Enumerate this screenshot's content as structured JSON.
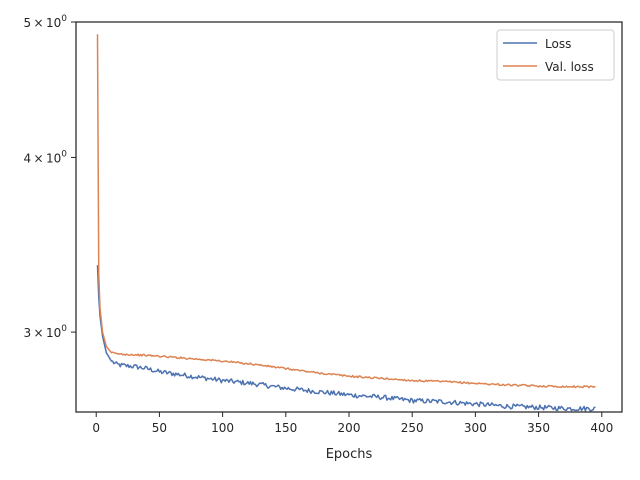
{
  "chart_data": {
    "type": "line",
    "title": "",
    "xlabel": "Epochs",
    "ylabel": "",
    "xlim": [
      -16,
      416
    ],
    "ylim": [
      2.63,
      5.0
    ],
    "yscale": "log",
    "grid": false,
    "legend_position": "top-right",
    "x_ticks": [
      0,
      50,
      100,
      150,
      200,
      250,
      300,
      350,
      400
    ],
    "x_tick_labels": [
      "0",
      "50",
      "100",
      "150",
      "200",
      "250",
      "300",
      "350",
      "400"
    ],
    "y_ticks": [
      3,
      4,
      5
    ],
    "y_tick_labels": [
      {
        "base": "3",
        "sep": "×",
        "pow": "10",
        "exp": "0"
      },
      {
        "base": "4",
        "sep": "×",
        "pow": "10",
        "exp": "0"
      },
      {
        "base": "5",
        "sep": "×",
        "pow": "10",
        "exp": "0"
      }
    ],
    "series": [
      {
        "name": "Loss",
        "color": "#4c72b0",
        "x": [
          1,
          2,
          3,
          5,
          8,
          12,
          16,
          20,
          30,
          40,
          50,
          75,
          100,
          125,
          150,
          175,
          200,
          225,
          250,
          275,
          300,
          325,
          350,
          375,
          395
        ],
        "y": [
          3.35,
          3.18,
          3.08,
          2.98,
          2.9,
          2.86,
          2.845,
          2.84,
          2.835,
          2.825,
          2.81,
          2.79,
          2.77,
          2.755,
          2.735,
          2.72,
          2.705,
          2.695,
          2.68,
          2.675,
          2.665,
          2.655,
          2.65,
          2.645,
          2.645
        ],
        "noise": 0.004
      },
      {
        "name": "Val. loss",
        "color": "#dd8452",
        "x": [
          1,
          2,
          3,
          5,
          8,
          12,
          16,
          20,
          30,
          40,
          50,
          75,
          100,
          125,
          150,
          175,
          200,
          225,
          250,
          275,
          300,
          325,
          350,
          375,
          395
        ],
        "y": [
          4.9,
          3.3,
          3.12,
          3.0,
          2.93,
          2.9,
          2.895,
          2.893,
          2.89,
          2.887,
          2.883,
          2.872,
          2.86,
          2.845,
          2.825,
          2.805,
          2.79,
          2.78,
          2.77,
          2.765,
          2.757,
          2.75,
          2.745,
          2.742,
          2.742
        ],
        "noise": 0.0015
      }
    ]
  }
}
